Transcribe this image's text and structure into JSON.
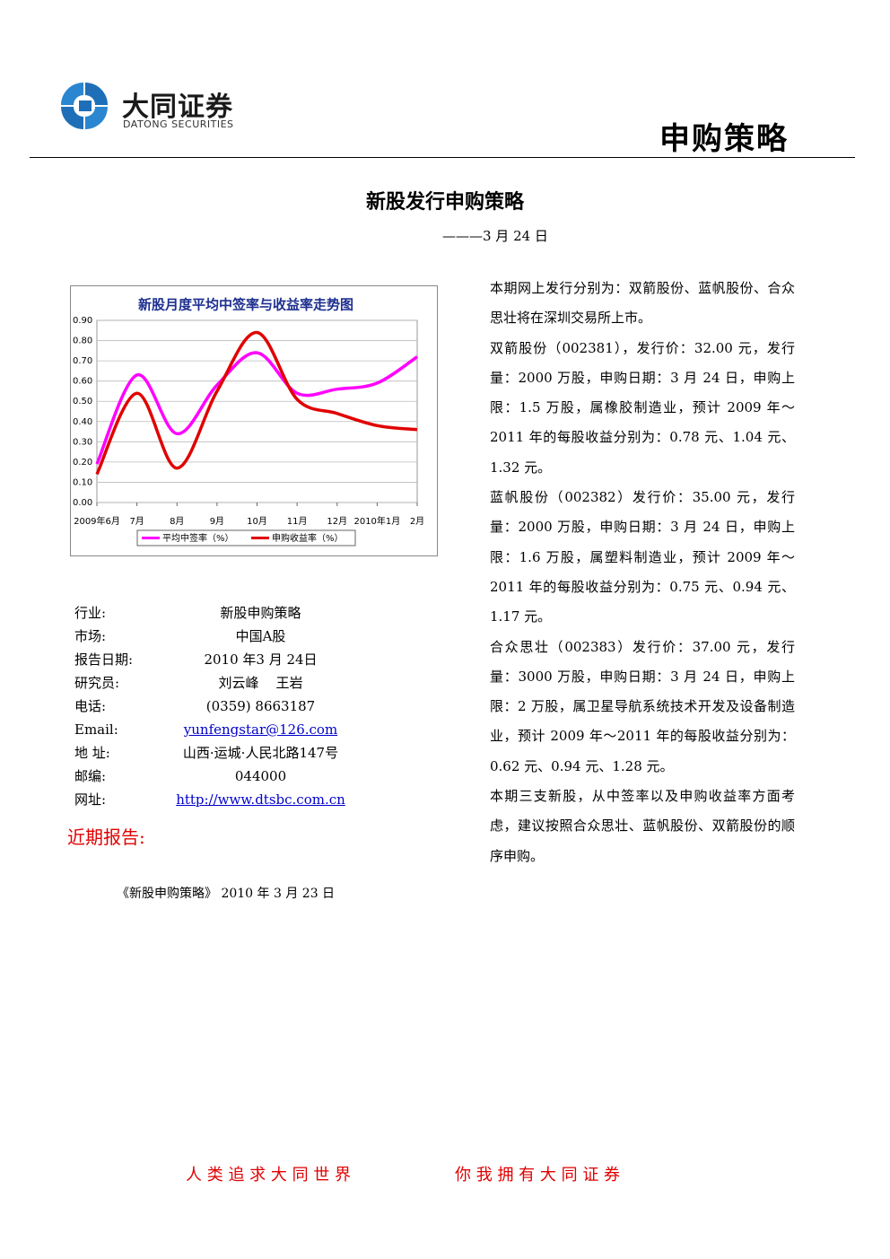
{
  "header": {
    "logo_cn": "大同证券",
    "logo_en": "DATONG SECURITIES",
    "section": "申购策略"
  },
  "title": "新股发行申购策略",
  "date": "———3 月 24 日",
  "chart_data": {
    "type": "line",
    "title": "新股月度平均中签率与收益率走势图",
    "categories": [
      "2009年6月",
      "7月",
      "8月",
      "9月",
      "10月",
      "11月",
      "12月",
      "2010年1月",
      "2月"
    ],
    "series": [
      {
        "name": "平均中签率（%）",
        "color": "#ff00ff",
        "values": [
          0.19,
          0.63,
          0.34,
          0.58,
          0.74,
          0.54,
          0.56,
          0.59,
          0.72
        ]
      },
      {
        "name": "申购收益率（%）",
        "color": "#e00000",
        "values": [
          0.14,
          0.54,
          0.17,
          0.55,
          0.84,
          0.51,
          0.44,
          0.38,
          0.36
        ]
      }
    ],
    "ylim": [
      0,
      0.9
    ],
    "yticks": [
      {
        "value": 0,
        "label": "0.00"
      },
      {
        "value": 0.1,
        "label": "0.10"
      },
      {
        "value": 0.2,
        "label": "0.20"
      },
      {
        "value": 0.3,
        "label": "0.30"
      },
      {
        "value": 0.4,
        "label": "0.40"
      },
      {
        "value": 0.5,
        "label": "0.50"
      },
      {
        "value": 0.6,
        "label": "0.60"
      },
      {
        "value": 0.7,
        "label": "0.70"
      },
      {
        "value": 0.8,
        "label": "0.80"
      },
      {
        "value": 0.9,
        "label": "0.90"
      }
    ],
    "grid": true,
    "legend": "bottom"
  },
  "info": [
    {
      "label": "行业:",
      "value": "新股申购策略"
    },
    {
      "label": "市场:",
      "value": "中国A股"
    },
    {
      "label": "报告日期:",
      "value": "2010 年3 月 24日"
    },
    {
      "label": "研究员:",
      "value": "刘云峰    王岩"
    },
    {
      "label": "电话:",
      "value": "(0359) 8663187"
    },
    {
      "label": "Email:",
      "value": "yunfengstar@126.com"
    },
    {
      "label": "地 址:",
      "value": "山西·运城·人民北路147号"
    },
    {
      "label": "邮编:",
      "value": "044000"
    },
    {
      "label": "网址:",
      "value": "http://www.dtsbc.com.cn"
    }
  ],
  "recent": {
    "heading": "近期报告:",
    "items": [
      "《新股申购策略》 2010 年 3 月 23 日"
    ]
  },
  "body": [
    "本期网上发行分别为：双箭股份、蓝帆股份、合众思壮将在深圳交易所上市。",
    "双箭股份（002381），发行价：32.00 元，发行量：2000 万股，申购日期：3 月 24 日，申购上限：1.5 万股，属橡胶制造业，预计 2009 年～2011 年的每股收益分别为：0.78 元、1.04 元、1.32 元。",
    "蓝帆股份（002382）发行价：35.00 元，发行量：2000 万股，申购日期：3 月 24 日，申购上限：1.6 万股，属塑料制造业，预计 2009 年～2011 年的每股收益分别为：0.75 元、0.94 元、1.17 元。",
    "合众思壮（002383）发行价：37.00 元，发行量：3000 万股，申购日期：3 月 24 日，申购上限：2 万股，属卫星导航系统技术开发及设备制造业，预计 2009 年～2011 年的每股收益分别为：0.62 元、0.94 元、1.28 元。",
    "本期三支新股，从中签率以及申购收益率方面考虑，建议按照合众思壮、蓝帆股份、双箭股份的顺序申购。"
  ],
  "footer": {
    "left": "人 类 追 求 大 同 世 界",
    "right": "你 我 拥 有 大 同 证 券"
  }
}
